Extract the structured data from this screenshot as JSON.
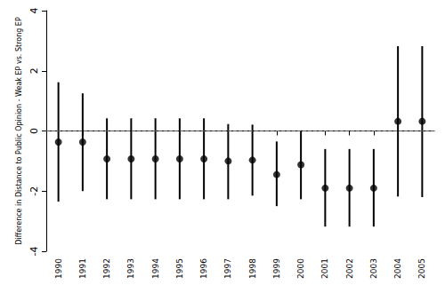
{
  "chart_data": {
    "type": "scatter",
    "y_label": "Difference in Distance to Public Opinion - Weak EP vs. Strong EP",
    "categories": [
      "1990",
      "1991",
      "1992",
      "1993",
      "1994",
      "1995",
      "1996",
      "1997",
      "1998",
      "1999",
      "2000",
      "2001",
      "2002",
      "2003",
      "2004",
      "2005"
    ],
    "values": [
      -0.37,
      -0.37,
      -0.93,
      -0.93,
      -0.93,
      -0.93,
      -0.93,
      -1.0,
      -0.97,
      -1.45,
      -1.12,
      -1.9,
      -1.9,
      -1.9,
      0.32,
      0.32
    ],
    "ci_lower": [
      -2.35,
      -2.0,
      -2.27,
      -2.27,
      -2.27,
      -2.27,
      -2.27,
      -2.27,
      -2.15,
      -2.5,
      -2.27,
      -3.18,
      -3.18,
      -3.18,
      -2.18,
      -2.2
    ],
    "ci_upper": [
      1.62,
      1.25,
      0.42,
      0.42,
      0.42,
      0.42,
      0.42,
      0.23,
      0.21,
      -0.35,
      0.02,
      -0.6,
      -0.6,
      -0.6,
      2.82,
      2.82
    ],
    "hline": 0,
    "color": "#000000",
    "marker": "circle",
    "ylim": [
      -4,
      4
    ],
    "yticks": [
      -4,
      -2,
      0,
      2,
      4
    ],
    "grid": false
  }
}
